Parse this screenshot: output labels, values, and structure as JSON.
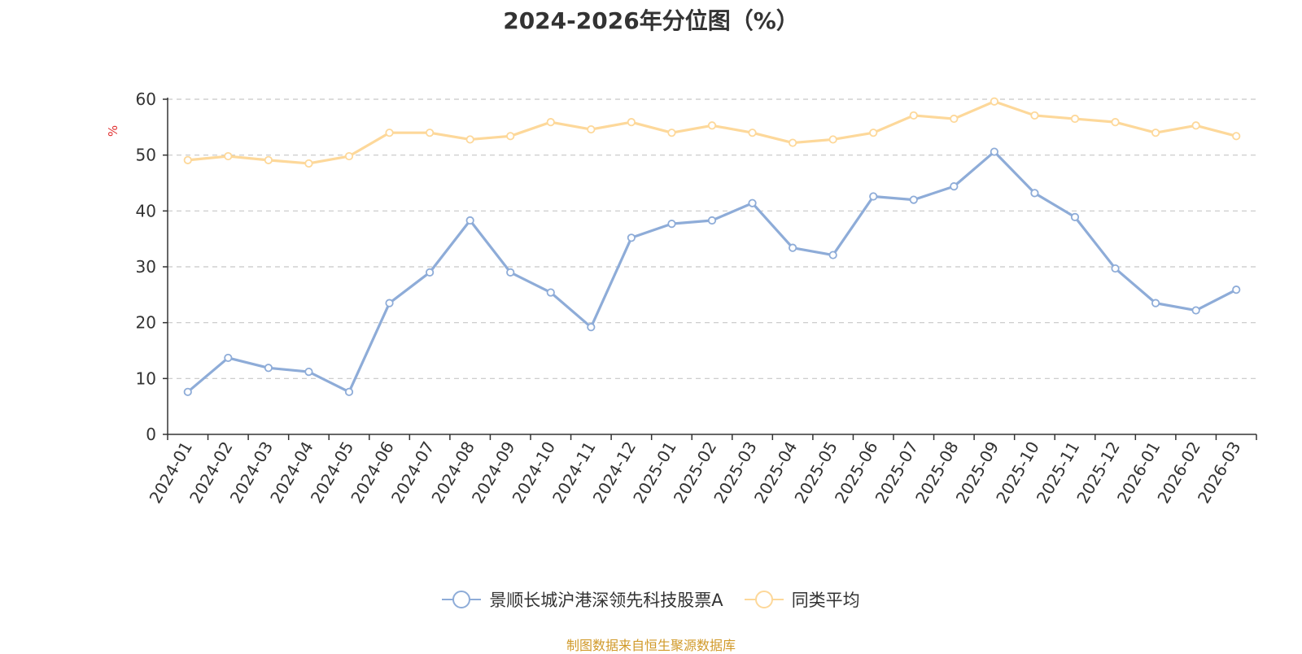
{
  "chart_data": {
    "type": "line",
    "title": "2024-2026年分位图（%）",
    "ylabel": "%",
    "xlabel": "",
    "ylim": [
      0,
      60
    ],
    "yticks": [
      0,
      10,
      20,
      30,
      40,
      50,
      60
    ],
    "grid": true,
    "legend_position": "bottom",
    "categories": [
      "2024-01",
      "2024-02",
      "2024-03",
      "2024-04",
      "2024-05",
      "2024-06",
      "2024-07",
      "2024-08",
      "2024-09",
      "2024-10",
      "2024-11",
      "2024-12",
      "2025-01",
      "2025-02",
      "2025-03",
      "2025-04",
      "2025-05",
      "2025-06",
      "2025-07",
      "2025-08",
      "2025-09",
      "2025-10",
      "2025-11",
      "2025-12",
      "2026-01",
      "2026-02",
      "2026-03"
    ],
    "series": [
      {
        "name": "景顺长城沪港深领先科技股票A",
        "color": "#8eacd8",
        "values": [
          7.6,
          13.7,
          11.9,
          11.2,
          7.6,
          23.5,
          29.0,
          38.3,
          29.0,
          25.4,
          19.2,
          35.2,
          37.7,
          38.3,
          41.4,
          33.4,
          32.1,
          42.6,
          42.0,
          44.4,
          50.6,
          43.2,
          38.9,
          29.7,
          23.5,
          22.2,
          25.9
        ]
      },
      {
        "name": "同类平均",
        "color": "#fdd89a",
        "values": [
          49.1,
          49.8,
          49.1,
          48.5,
          49.8,
          54.0,
          54.0,
          52.8,
          53.4,
          55.9,
          54.6,
          55.9,
          54.0,
          55.3,
          54.0,
          52.2,
          52.8,
          54.0,
          57.1,
          56.5,
          59.6,
          57.1,
          56.5,
          55.9,
          54.0,
          55.3,
          53.4
        ]
      }
    ]
  },
  "source": "制图数据来自恒生聚源数据库"
}
